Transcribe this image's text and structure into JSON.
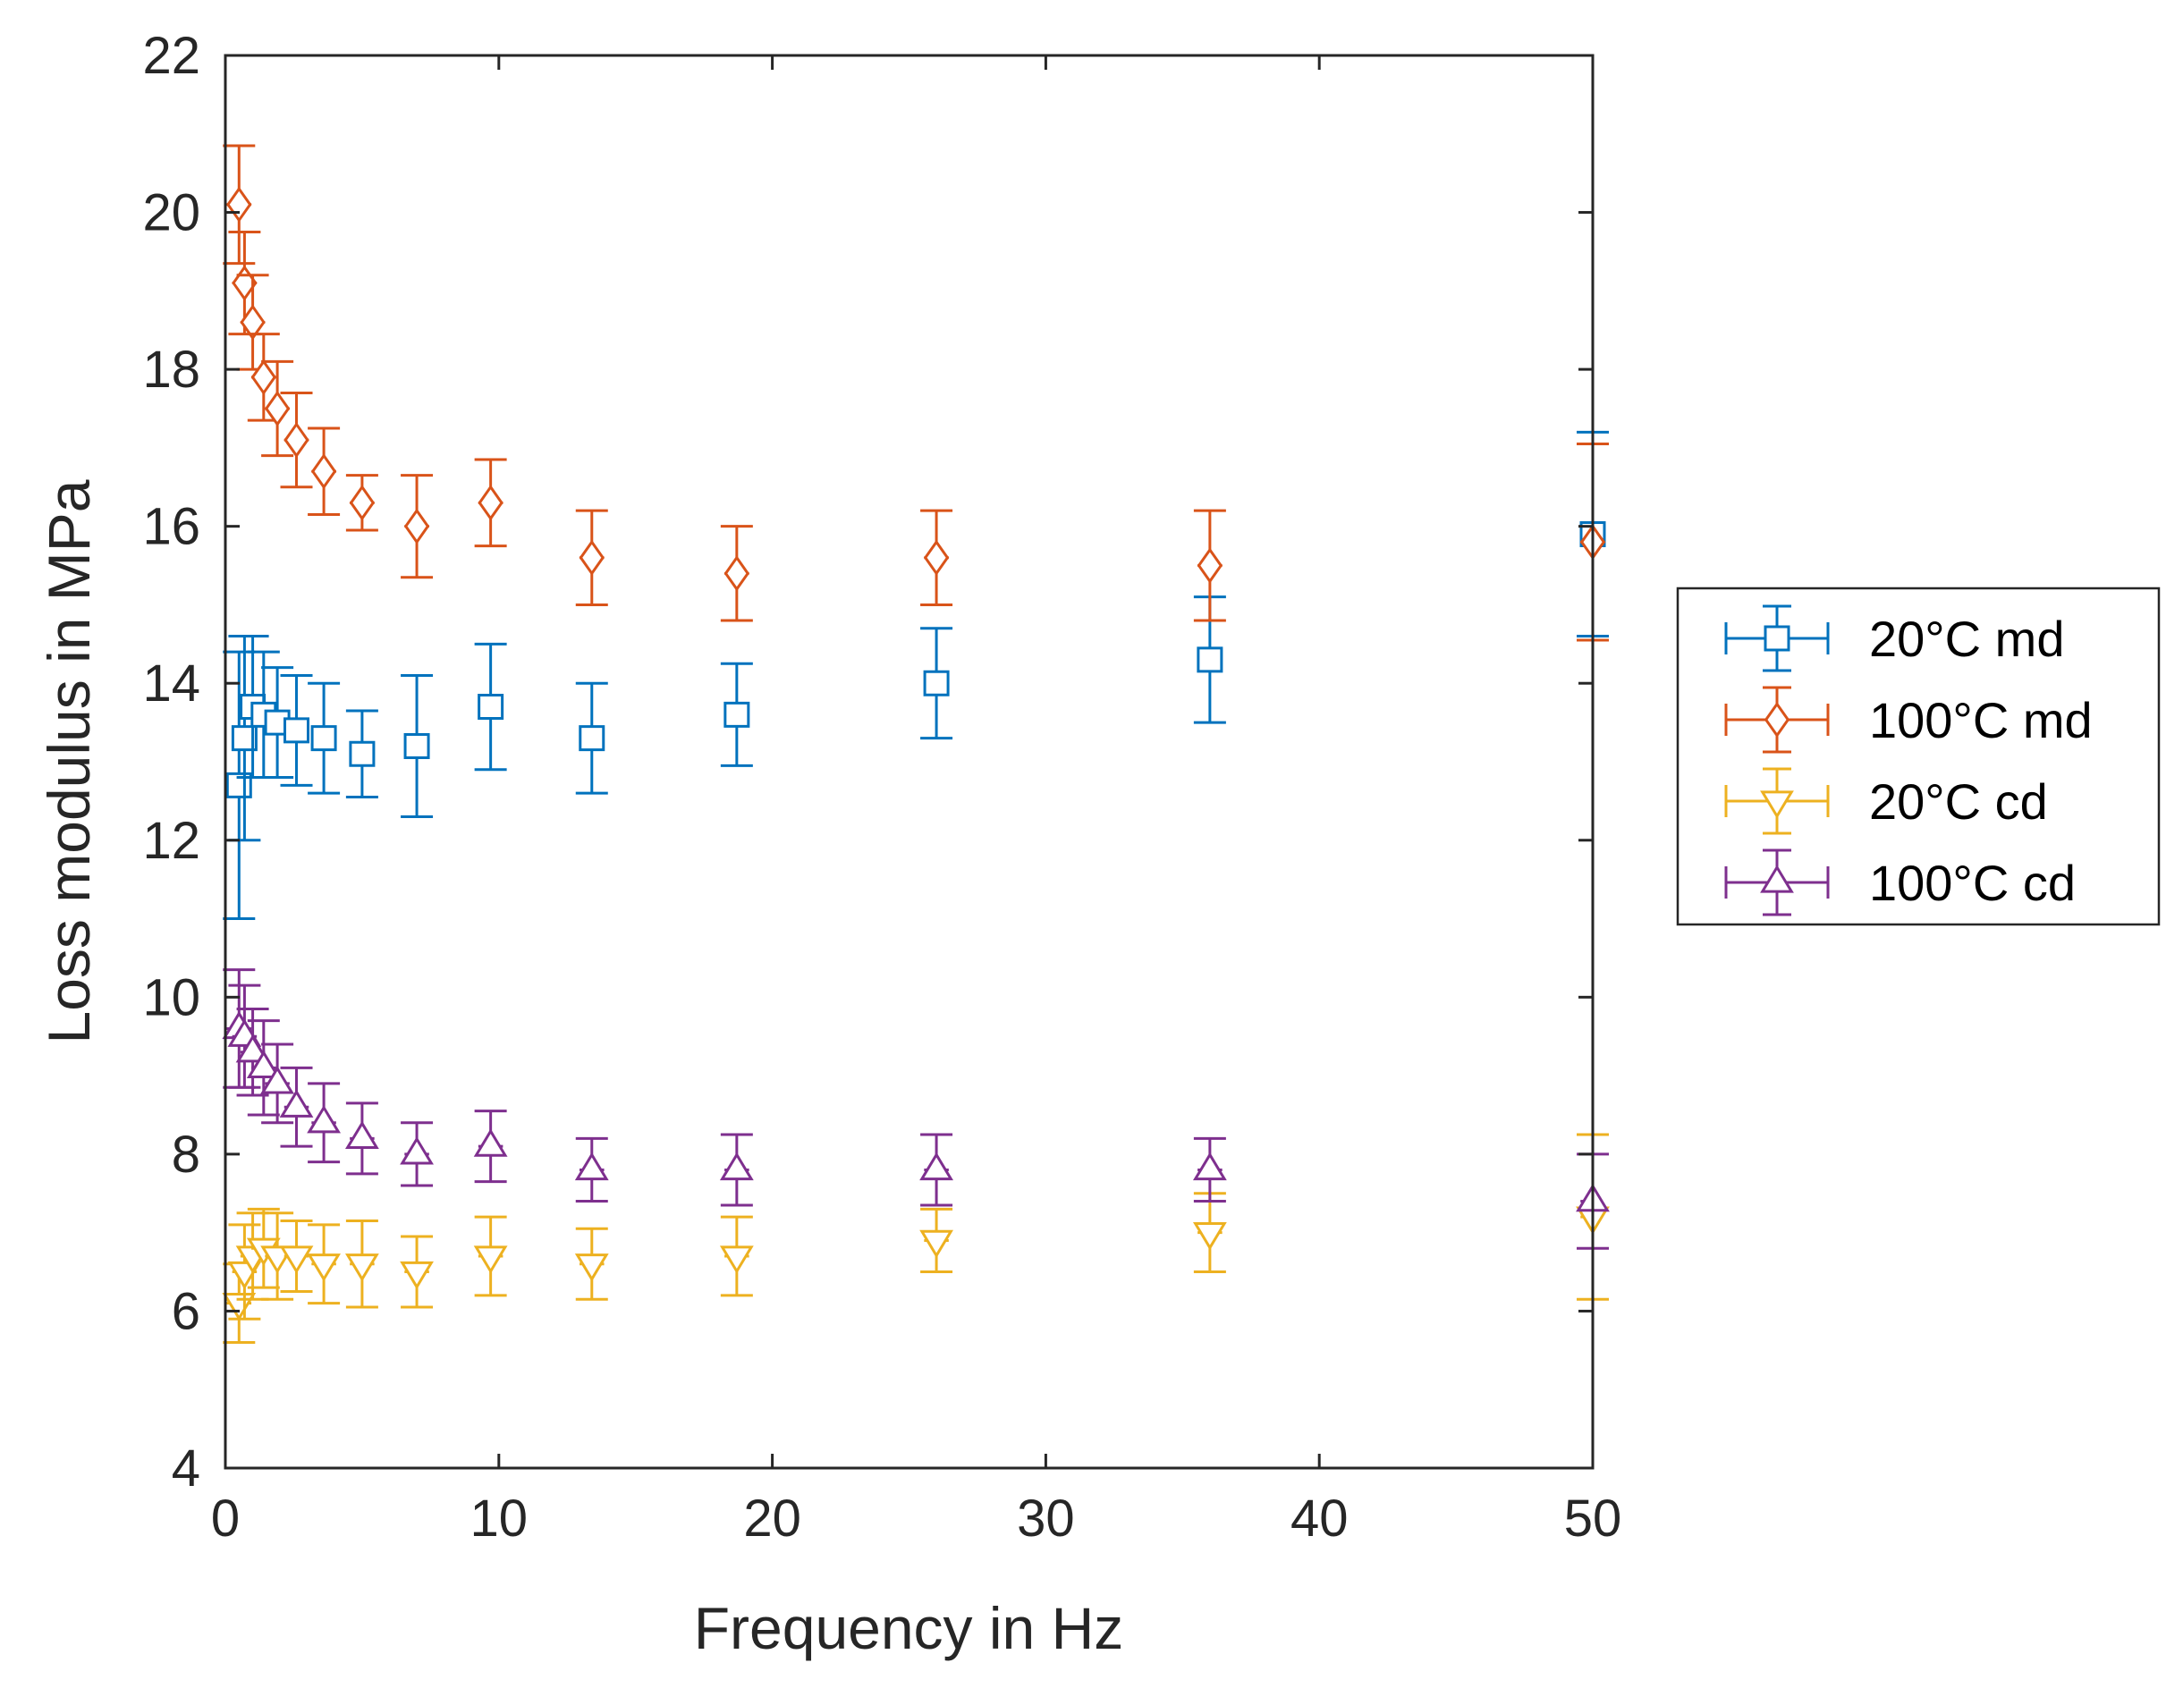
{
  "chart_data": {
    "type": "scatter",
    "title": "",
    "xlabel": "Frequency in Hz",
    "ylabel": "Loss modulus in MPa",
    "xlim": [
      0,
      50
    ],
    "ylim": [
      4,
      22
    ],
    "xticks": [
      0,
      10,
      20,
      30,
      40,
      50
    ],
    "yticks": [
      4,
      6,
      8,
      10,
      12,
      14,
      16,
      18,
      20,
      22
    ],
    "grid": false,
    "legend_position": "outside-right",
    "error_bars": "vertical and horizontal",
    "series": [
      {
        "name": "20°C md",
        "color": "#0072BD",
        "marker": "square",
        "x": [
          0.5,
          0.7,
          1.0,
          1.4,
          1.9,
          2.6,
          3.6,
          5.0,
          7.0,
          9.7,
          13.4,
          18.7,
          26.0,
          36.0,
          50.0
        ],
        "y": [
          12.7,
          13.3,
          13.7,
          13.6,
          13.5,
          13.4,
          13.3,
          13.1,
          13.2,
          13.7,
          13.3,
          13.6,
          14.0,
          14.3,
          15.9
        ],
        "yerr": [
          1.7,
          1.3,
          0.9,
          0.8,
          0.7,
          0.7,
          0.7,
          0.55,
          0.9,
          0.8,
          0.7,
          0.65,
          0.7,
          0.8,
          1.3
        ]
      },
      {
        "name": "100°C md",
        "color": "#D95319",
        "marker": "diamond",
        "x": [
          0.5,
          0.7,
          1.0,
          1.4,
          1.9,
          2.6,
          3.6,
          5.0,
          7.0,
          9.7,
          13.4,
          18.7,
          26.0,
          36.0,
          50.0
        ],
        "y": [
          20.1,
          19.1,
          18.6,
          17.9,
          17.5,
          17.1,
          16.7,
          16.3,
          16.0,
          16.3,
          15.6,
          15.4,
          15.6,
          15.5,
          15.8
        ],
        "yerr": [
          0.75,
          0.65,
          0.6,
          0.55,
          0.6,
          0.6,
          0.55,
          0.35,
          0.65,
          0.55,
          0.6,
          0.6,
          0.6,
          0.7,
          1.25
        ]
      },
      {
        "name": "20°C cd",
        "color": "#EDB120",
        "marker": "triangle-down",
        "x": [
          0.5,
          0.7,
          1.0,
          1.4,
          1.9,
          2.6,
          3.6,
          5.0,
          7.0,
          9.7,
          13.4,
          18.7,
          26.0,
          36.0,
          50.0
        ],
        "y": [
          6.1,
          6.5,
          6.7,
          6.8,
          6.7,
          6.7,
          6.6,
          6.6,
          6.5,
          6.7,
          6.6,
          6.7,
          6.9,
          7.0,
          7.2
        ],
        "yerr": [
          0.5,
          0.6,
          0.55,
          0.5,
          0.55,
          0.45,
          0.5,
          0.55,
          0.45,
          0.5,
          0.45,
          0.5,
          0.4,
          0.5,
          1.05
        ]
      },
      {
        "name": "100°C cd",
        "color": "#7E2F8E",
        "marker": "triangle-up",
        "x": [
          0.5,
          0.7,
          1.0,
          1.4,
          1.9,
          2.6,
          3.6,
          5.0,
          7.0,
          9.7,
          13.4,
          18.7,
          26.0,
          36.0,
          50.0
        ],
        "y": [
          9.6,
          9.5,
          9.3,
          9.1,
          8.9,
          8.6,
          8.4,
          8.2,
          8.0,
          8.1,
          7.8,
          7.8,
          7.8,
          7.8,
          7.4
        ],
        "yerr": [
          0.75,
          0.65,
          0.55,
          0.6,
          0.5,
          0.5,
          0.5,
          0.45,
          0.4,
          0.45,
          0.4,
          0.45,
          0.45,
          0.4,
          0.6
        ]
      }
    ]
  }
}
